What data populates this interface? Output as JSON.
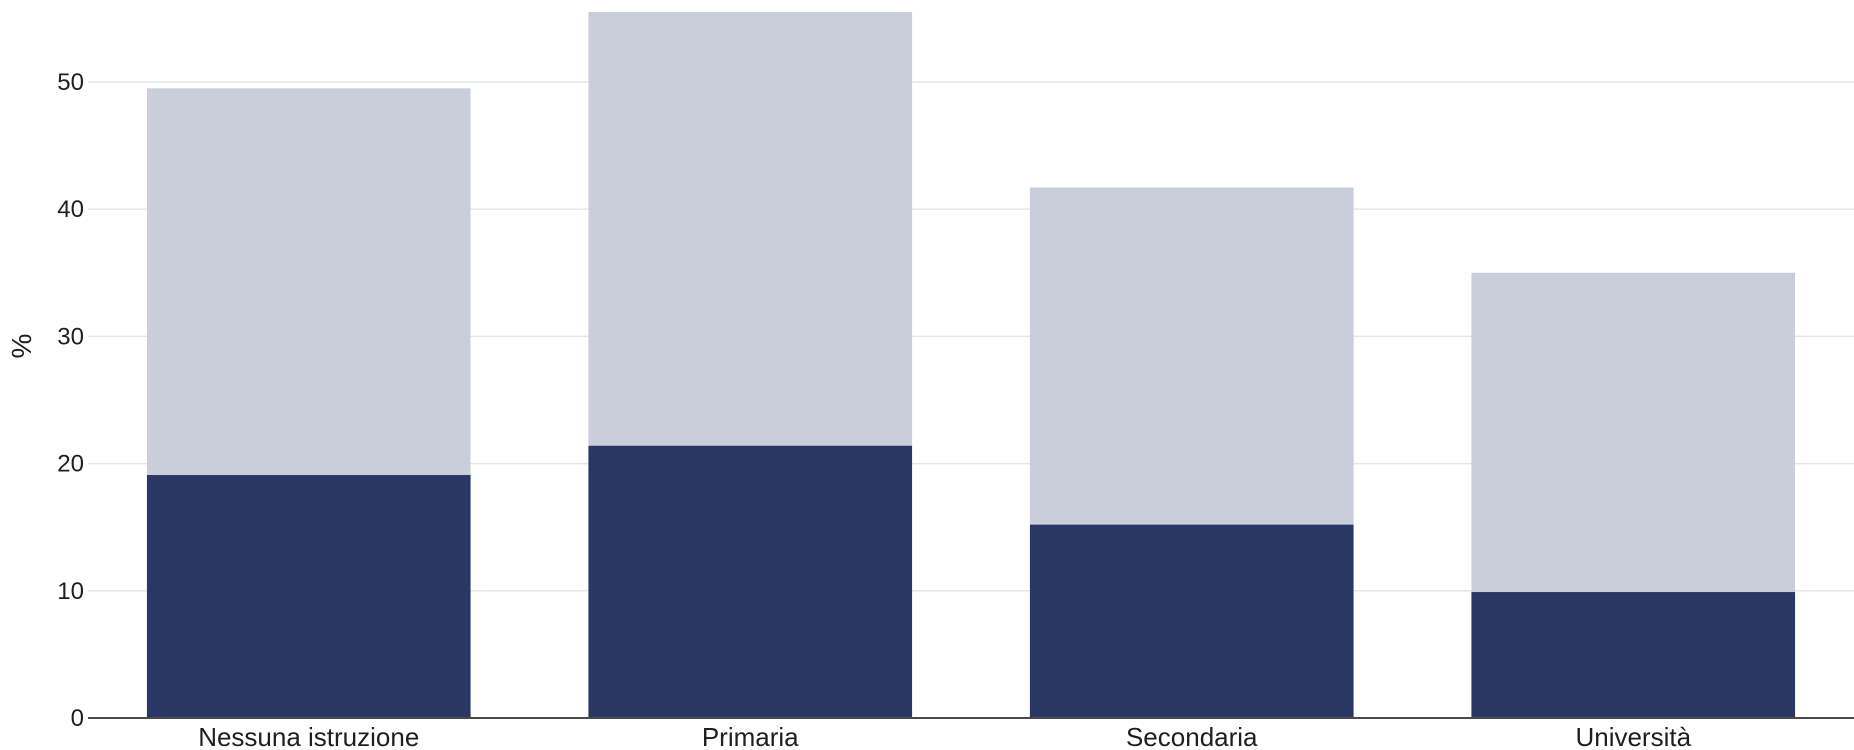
{
  "chart_data": {
    "type": "bar",
    "stacked": false,
    "overlay": true,
    "categories": [
      "Nessuna istruzione",
      "Primaria",
      "Secondaria",
      "Università"
    ],
    "series": [
      {
        "values": [
          49.5,
          55.5,
          41.7,
          35.0
        ],
        "color": "#cacdda"
      },
      {
        "values": [
          19.1,
          21.4,
          15.2,
          9.9
        ],
        "color": "#2a3664"
      }
    ],
    "xlabel": "",
    "ylabel": "%",
    "ylim": [
      0,
      55.5
    ],
    "yticks": [
      0,
      10,
      20,
      30,
      40,
      50
    ],
    "grid": true
  }
}
